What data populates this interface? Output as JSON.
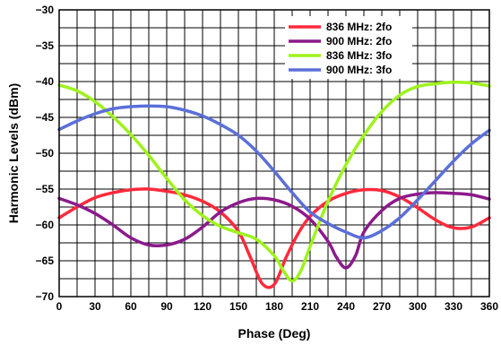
{
  "chart_data": {
    "type": "line",
    "xlabel": "Phase (Deg)",
    "ylabel": "Harmonic Levels (dBm)",
    "xlim": [
      0,
      360
    ],
    "ylim": [
      -70,
      -30
    ],
    "x_ticks": [
      0,
      30,
      60,
      90,
      120,
      150,
      180,
      210,
      240,
      270,
      300,
      330,
      360
    ],
    "y_ticks": [
      -30,
      -35,
      -40,
      -45,
      -50,
      -55,
      -60,
      -65,
      -70
    ],
    "x_tick_labels": [
      "0",
      "30",
      "60",
      "90",
      "120",
      "150",
      "180",
      "210",
      "240",
      "270",
      "300",
      "330",
      "360"
    ],
    "y_tick_labels": [
      "−30",
      "−35",
      "−40",
      "−45",
      "−50",
      "−55",
      "−60",
      "−65",
      "−70"
    ],
    "grid": true,
    "legend_position": "top-right",
    "series": [
      {
        "name": "836 MHz: 2fo",
        "color": "#ff2a3c",
        "x": [
          0,
          15,
          30,
          45,
          60,
          75,
          90,
          105,
          120,
          135,
          150,
          160,
          170,
          180,
          190,
          200,
          210,
          225,
          240,
          255,
          270,
          285,
          300,
          315,
          330,
          345,
          360
        ],
        "y": [
          -59,
          -57.5,
          -56.2,
          -55.5,
          -55.1,
          -55.0,
          -55.3,
          -55.8,
          -56.7,
          -58.2,
          -60.9,
          -64.5,
          -68.2,
          -68.3,
          -64.5,
          -61.2,
          -58.8,
          -56.7,
          -55.6,
          -55.1,
          -55.2,
          -56.1,
          -57.6,
          -59.3,
          -60.4,
          -60.3,
          -59.0
        ]
      },
      {
        "name": "900 MHz: 2fo",
        "color": "#8b1a8b",
        "x": [
          0,
          15,
          30,
          45,
          60,
          75,
          90,
          105,
          120,
          135,
          150,
          165,
          180,
          195,
          210,
          225,
          232,
          240,
          248,
          255,
          270,
          285,
          300,
          315,
          330,
          345,
          360
        ],
        "y": [
          -56.3,
          -57.2,
          -58.4,
          -60.0,
          -61.8,
          -62.8,
          -62.8,
          -62.0,
          -60.3,
          -58.2,
          -56.9,
          -56.3,
          -56.5,
          -57.4,
          -59.2,
          -62.3,
          -64.5,
          -66.0,
          -64.3,
          -61.0,
          -58.0,
          -56.3,
          -55.7,
          -55.5,
          -55.6,
          -55.8,
          -56.4
        ]
      },
      {
        "name": "836 MHz: 3fo",
        "color": "#9ef31c",
        "x": [
          0,
          15,
          30,
          45,
          60,
          75,
          90,
          105,
          120,
          135,
          150,
          165,
          180,
          188,
          195,
          202,
          210,
          225,
          240,
          255,
          270,
          285,
          300,
          315,
          330,
          345,
          360
        ],
        "y": [
          -40.5,
          -41.3,
          -42.8,
          -44.9,
          -47.4,
          -50.3,
          -53.5,
          -56.5,
          -58.7,
          -60.2,
          -61.1,
          -62.0,
          -64.3,
          -66.5,
          -67.8,
          -66.5,
          -63.0,
          -56.7,
          -51.6,
          -47.5,
          -44.2,
          -41.9,
          -40.7,
          -40.3,
          -40.1,
          -40.2,
          -40.6
        ]
      },
      {
        "name": "900 MHz: 3fo",
        "color": "#5b6fd8",
        "x": [
          0,
          15,
          30,
          45,
          60,
          75,
          90,
          105,
          120,
          135,
          150,
          165,
          180,
          195,
          210,
          225,
          240,
          255,
          270,
          285,
          300,
          315,
          330,
          345,
          360
        ],
        "y": [
          -46.7,
          -45.5,
          -44.5,
          -43.8,
          -43.5,
          -43.4,
          -43.5,
          -44.0,
          -44.8,
          -46.0,
          -47.5,
          -49.7,
          -52.5,
          -55.5,
          -58.2,
          -59.8,
          -61.0,
          -61.8,
          -60.8,
          -59.0,
          -56.5,
          -53.8,
          -51.1,
          -48.7,
          -46.8
        ]
      }
    ]
  }
}
